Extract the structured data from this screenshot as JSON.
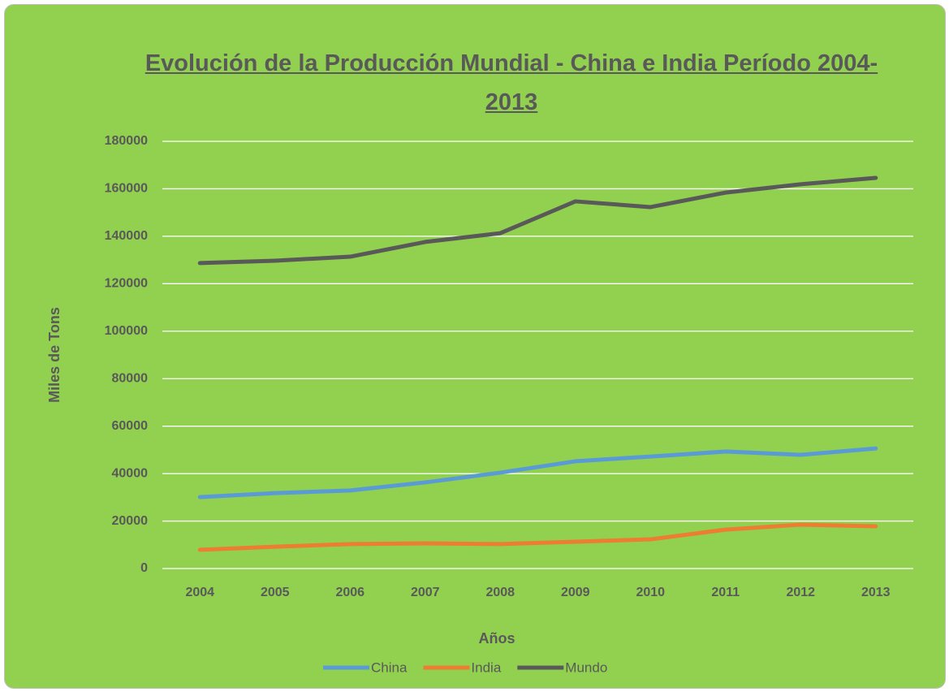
{
  "chart_data": {
    "type": "line",
    "title": "Evolución de la Producción Mundial - China e India Período 2004-2013",
    "x_label": "Años",
    "y_label": "Miles de Tons",
    "categories": [
      "2004",
      "2005",
      "2006",
      "2007",
      "2008",
      "2009",
      "2010",
      "2011",
      "2012",
      "2013"
    ],
    "series": [
      {
        "name": "China",
        "color": "#5b9bd5",
        "values": [
          30100,
          31800,
          32900,
          36300,
          40400,
          45200,
          47200,
          49300,
          47900,
          50600
        ]
      },
      {
        "name": "India",
        "color": "#ed7d31",
        "values": [
          7900,
          9200,
          10300,
          10600,
          10300,
          11300,
          12300,
          16400,
          18500,
          17800
        ]
      },
      {
        "name": "Mundo",
        "color": "#595959",
        "values": [
          128700,
          129700,
          131400,
          137600,
          141300,
          154700,
          152300,
          158400,
          161900,
          164600
        ]
      }
    ],
    "ylim": [
      0,
      180000
    ],
    "yticks": [
      0,
      20000,
      40000,
      60000,
      80000,
      100000,
      120000,
      140000,
      160000,
      180000
    ],
    "grid": true,
    "legend": "bottom"
  }
}
